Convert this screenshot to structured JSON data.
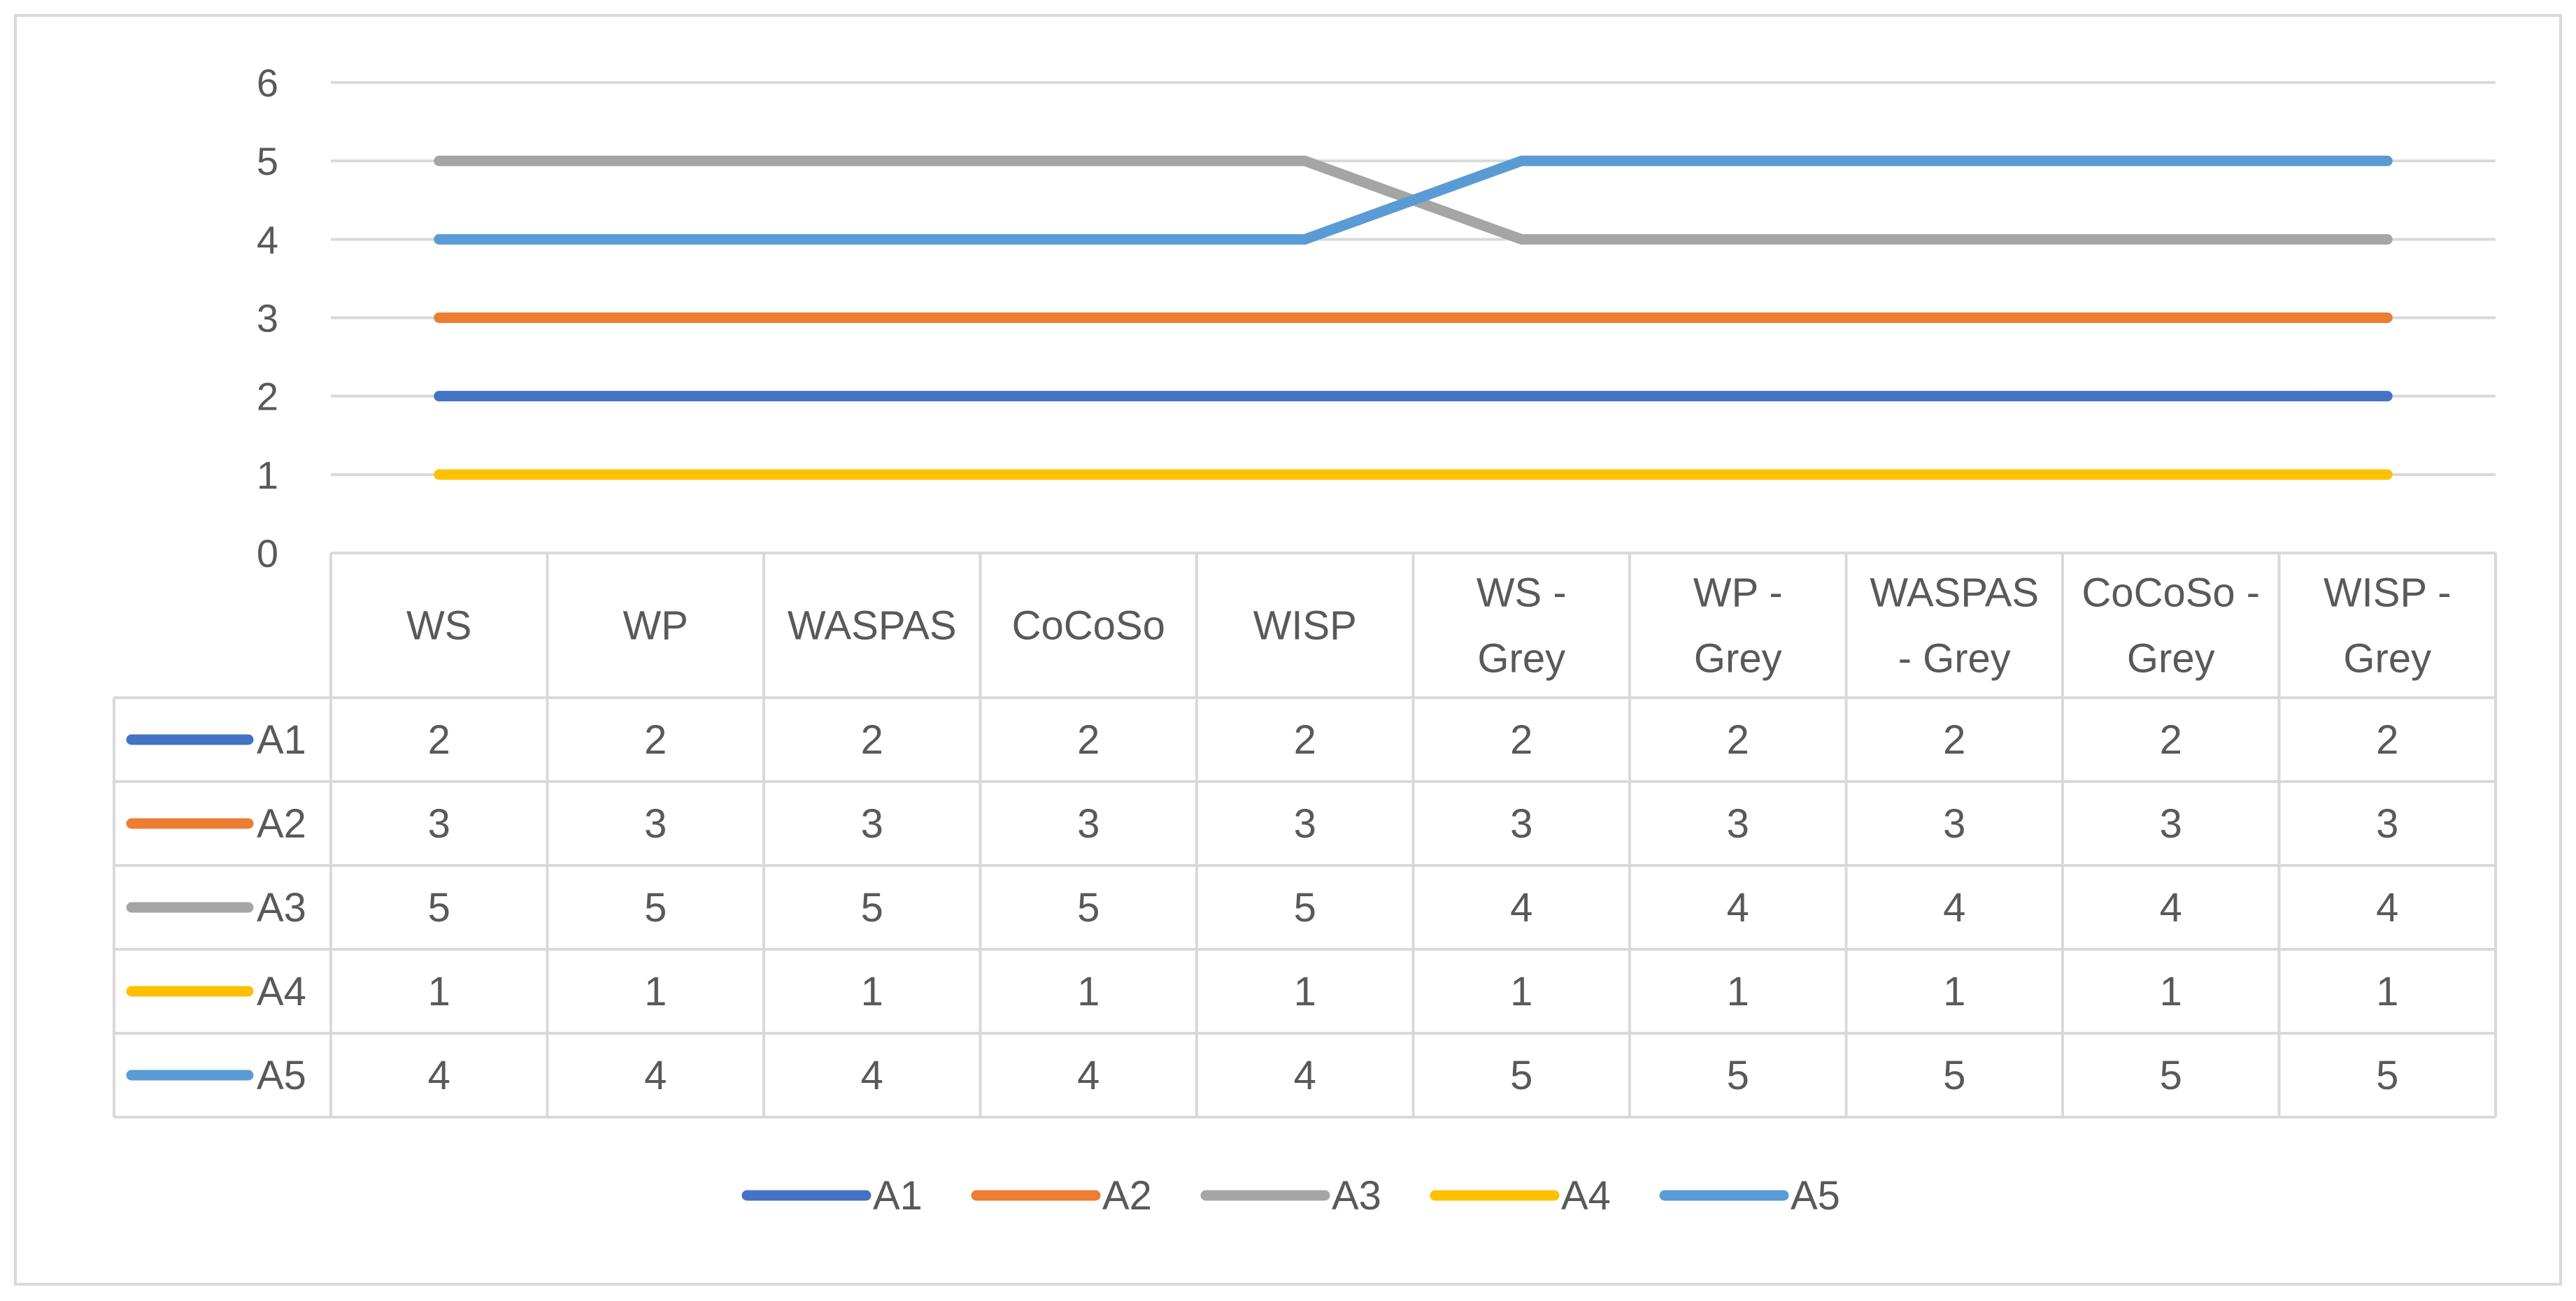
{
  "chart_data": {
    "type": "line",
    "categories": [
      [
        "WS"
      ],
      [
        "WP"
      ],
      [
        "WASPAS"
      ],
      [
        "CoCoSo"
      ],
      [
        "WISP"
      ],
      [
        "WS -",
        "Grey"
      ],
      [
        "WP -",
        "Grey"
      ],
      [
        "WASPAS",
        "- Grey"
      ],
      [
        "CoCoSo  -",
        "Grey"
      ],
      [
        "WISP -",
        "Grey"
      ]
    ],
    "series": [
      {
        "name": "A1",
        "color": "#4472C4",
        "values": [
          2,
          2,
          2,
          2,
          2,
          2,
          2,
          2,
          2,
          2
        ]
      },
      {
        "name": "A2",
        "color": "#ED7D31",
        "values": [
          3,
          3,
          3,
          3,
          3,
          3,
          3,
          3,
          3,
          3
        ]
      },
      {
        "name": "A3",
        "color": "#A5A5A5",
        "values": [
          5,
          5,
          5,
          5,
          5,
          4,
          4,
          4,
          4,
          4
        ]
      },
      {
        "name": "A4",
        "color": "#FFC000",
        "values": [
          1,
          1,
          1,
          1,
          1,
          1,
          1,
          1,
          1,
          1
        ]
      },
      {
        "name": "A5",
        "color": "#5B9BD5",
        "values": [
          4,
          4,
          4,
          4,
          4,
          5,
          5,
          5,
          5,
          5
        ]
      }
    ],
    "ylim": [
      0,
      6
    ],
    "yticks": [
      0,
      1,
      2,
      3,
      4,
      5,
      6
    ],
    "grid": true,
    "data_table": true,
    "legend": "bottom",
    "title": "",
    "xlabel": "",
    "ylabel": ""
  }
}
